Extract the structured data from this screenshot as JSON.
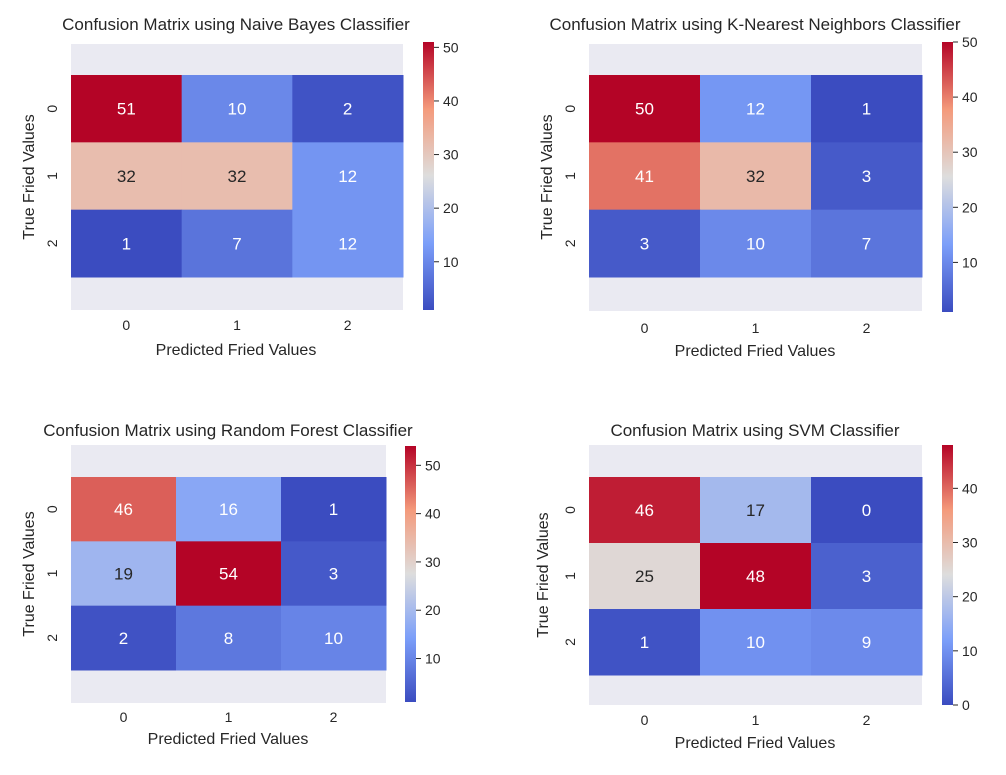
{
  "chart_data": [
    {
      "type": "heatmap",
      "title": "Confusion Matrix using Naive Bayes Classifier",
      "xlabel": "Predicted Fried Values",
      "ylabel": "True Fried Values",
      "x_categories": [
        "0",
        "1",
        "2"
      ],
      "y_categories": [
        "0",
        "1",
        "2"
      ],
      "values": [
        [
          51,
          10,
          2
        ],
        [
          32,
          32,
          12
        ],
        [
          1,
          7,
          12
        ]
      ],
      "colormap": "coolwarm",
      "colorbar_range": [
        1,
        51
      ],
      "colorbar_ticks": [
        10,
        20,
        30,
        40,
        50
      ]
    },
    {
      "type": "heatmap",
      "title": "Confusion Matrix using K-Nearest Neighbors Classifier",
      "xlabel": "Predicted Fried Values",
      "ylabel": "True Fried Values",
      "x_categories": [
        "0",
        "1",
        "2"
      ],
      "y_categories": [
        "0",
        "1",
        "2"
      ],
      "values": [
        [
          50,
          12,
          1
        ],
        [
          41,
          32,
          3
        ],
        [
          3,
          10,
          7
        ]
      ],
      "colormap": "coolwarm",
      "colorbar_range": [
        1,
        50
      ],
      "colorbar_ticks": [
        10,
        20,
        30,
        40,
        50
      ]
    },
    {
      "type": "heatmap",
      "title": "Confusion Matrix using Random Forest Classifier",
      "xlabel": "Predicted Fried Values",
      "ylabel": "True Fried Values",
      "x_categories": [
        "0",
        "1",
        "2"
      ],
      "y_categories": [
        "0",
        "1",
        "2"
      ],
      "values": [
        [
          46,
          16,
          1
        ],
        [
          19,
          54,
          3
        ],
        [
          2,
          8,
          10
        ]
      ],
      "colormap": "coolwarm",
      "colorbar_range": [
        1,
        54
      ],
      "colorbar_ticks": [
        10,
        20,
        30,
        40,
        50
      ]
    },
    {
      "type": "heatmap",
      "title": "Confusion Matrix using SVM Classifier",
      "xlabel": "Predicted Fried Values",
      "ylabel": "True Fried Values",
      "x_categories": [
        "0",
        "1",
        "2"
      ],
      "y_categories": [
        "0",
        "1",
        "2"
      ],
      "values": [
        [
          46,
          17,
          0
        ],
        [
          25,
          48,
          3
        ],
        [
          1,
          10,
          9
        ]
      ],
      "colormap": "coolwarm",
      "colorbar_range": [
        0,
        48
      ],
      "colorbar_ticks": [
        0,
        10,
        20,
        30,
        40
      ]
    }
  ]
}
